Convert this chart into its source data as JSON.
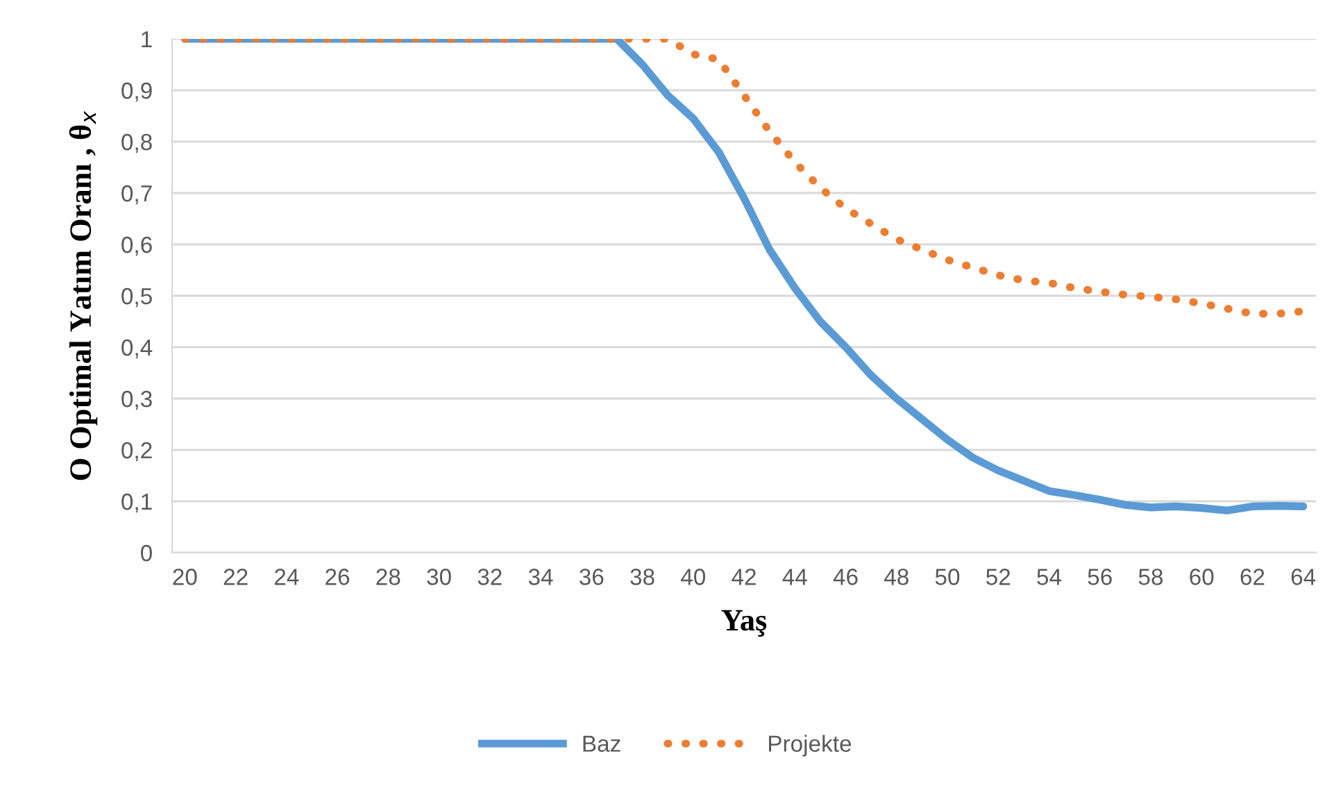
{
  "chart_data": {
    "type": "line",
    "xlabel": "Yaş",
    "ylabel": "O Optimal Yatım Oranı , θ$_{x}$",
    "categories": [
      "20",
      null,
      "22",
      null,
      "24",
      null,
      "26",
      null,
      "28",
      null,
      "30",
      null,
      "32",
      null,
      "34",
      null,
      "36",
      null,
      "38",
      null,
      "40",
      null,
      "42",
      null,
      "44",
      null,
      "46",
      null,
      "48",
      null,
      "50",
      null,
      "52",
      null,
      "54",
      null,
      "56",
      null,
      "58",
      null,
      "60",
      null,
      "62",
      null,
      "64"
    ],
    "series": [
      {
        "name": "Baz",
        "color": "#5b9bd5",
        "line_style": "solid",
        "values": [
          1,
          1,
          1,
          1,
          1,
          1,
          1,
          1,
          1,
          1,
          1,
          1,
          1,
          1,
          1,
          1,
          1,
          1,
          0.95,
          0.89,
          0.845,
          0.78,
          0.69,
          0.59,
          0.515,
          0.45,
          0.4,
          0.345,
          0.3,
          0.26,
          0.22,
          0.185,
          0.16,
          0.14,
          0.12,
          0.112,
          0.103,
          0.093,
          0.088,
          0.09,
          0.087,
          0.082,
          0.09,
          0.091,
          0.09
        ]
      },
      {
        "name": "Projekte",
        "color": "#ed7d31",
        "line_style": "dotted",
        "values": [
          1,
          1,
          1,
          1,
          1,
          1,
          1,
          1,
          1,
          1,
          1,
          1,
          1,
          1,
          1,
          1,
          1,
          1,
          1,
          1,
          0.97,
          0.96,
          0.89,
          0.82,
          0.76,
          0.71,
          0.67,
          0.64,
          0.61,
          0.59,
          0.57,
          0.555,
          0.54,
          0.53,
          0.525,
          0.515,
          0.508,
          0.502,
          0.498,
          0.493,
          0.485,
          0.475,
          0.465,
          0.465,
          0.47
        ]
      }
    ],
    "ylim": [
      0,
      1
    ],
    "yticks": [
      0,
      {
        "value": 0.1,
        "label": "0,1"
      },
      {
        "value": 0.2,
        "label": "0,2"
      },
      {
        "value": 0.3,
        "label": "0,3"
      },
      {
        "value": 0.4,
        "label": "0,4"
      },
      {
        "value": 0.5,
        "label": "0,5"
      },
      {
        "value": 0.6,
        "label": "0,6"
      },
      {
        "value": 0.7,
        "label": "0,7"
      },
      {
        "value": 0.8,
        "label": "0,8"
      },
      {
        "value": 0.9,
        "label": "0,9"
      },
      1
    ],
    "grid": "y",
    "legend": "bottom",
    "marker": "none"
  }
}
